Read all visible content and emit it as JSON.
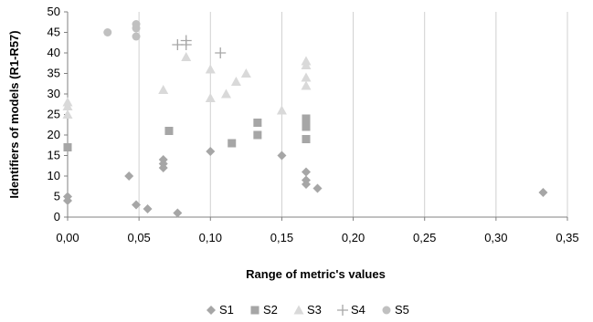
{
  "chart_data": {
    "type": "scatter",
    "xlabel": "Range of metric's values",
    "ylabel": "Identifiers of models (R1-R57)",
    "xlim": [
      0,
      0.35
    ],
    "ylim": [
      0,
      50
    ],
    "x_ticks": [
      0,
      0.05,
      0.1,
      0.15,
      0.2,
      0.25,
      0.3,
      0.35
    ],
    "x_tick_labels": [
      "0,00",
      "0,05",
      "0,10",
      "0,15",
      "0,20",
      "0,25",
      "0,30",
      "0,35"
    ],
    "y_ticks": [
      0,
      5,
      10,
      15,
      20,
      25,
      30,
      35,
      40,
      45,
      50
    ],
    "y_tick_labels": [
      "0",
      "5",
      "10",
      "15",
      "20",
      "25",
      "30",
      "35",
      "40",
      "45",
      "50"
    ],
    "grid": "vertical",
    "legend_position": "bottom",
    "series": [
      {
        "name": "S1",
        "marker": "diamond",
        "color": "#a6a6a6",
        "points": [
          {
            "x": 0.0,
            "y": 4
          },
          {
            "x": 0.0,
            "y": 5
          },
          {
            "x": 0.043,
            "y": 10
          },
          {
            "x": 0.048,
            "y": 3
          },
          {
            "x": 0.056,
            "y": 2
          },
          {
            "x": 0.067,
            "y": 14
          },
          {
            "x": 0.067,
            "y": 13
          },
          {
            "x": 0.067,
            "y": 12
          },
          {
            "x": 0.077,
            "y": 1
          },
          {
            "x": 0.1,
            "y": 16
          },
          {
            "x": 0.15,
            "y": 15
          },
          {
            "x": 0.167,
            "y": 11
          },
          {
            "x": 0.167,
            "y": 9
          },
          {
            "x": 0.167,
            "y": 8
          },
          {
            "x": 0.175,
            "y": 7
          },
          {
            "x": 0.333,
            "y": 6
          }
        ]
      },
      {
        "name": "S2",
        "marker": "square",
        "color": "#a6a6a6",
        "points": [
          {
            "x": 0.0,
            "y": 17
          },
          {
            "x": 0.071,
            "y": 21
          },
          {
            "x": 0.115,
            "y": 18
          },
          {
            "x": 0.133,
            "y": 23
          },
          {
            "x": 0.133,
            "y": 20
          },
          {
            "x": 0.167,
            "y": 24
          },
          {
            "x": 0.167,
            "y": 23
          },
          {
            "x": 0.167,
            "y": 22
          },
          {
            "x": 0.167,
            "y": 19
          }
        ]
      },
      {
        "name": "S3",
        "marker": "triangle",
        "color": "#d9d9d9",
        "points": [
          {
            "x": 0.0,
            "y": 28
          },
          {
            "x": 0.0,
            "y": 27
          },
          {
            "x": 0.0,
            "y": 25
          },
          {
            "x": 0.067,
            "y": 31
          },
          {
            "x": 0.083,
            "y": 39
          },
          {
            "x": 0.1,
            "y": 36
          },
          {
            "x": 0.1,
            "y": 29
          },
          {
            "x": 0.111,
            "y": 30
          },
          {
            "x": 0.118,
            "y": 33
          },
          {
            "x": 0.125,
            "y": 35
          },
          {
            "x": 0.15,
            "y": 26
          },
          {
            "x": 0.167,
            "y": 38
          },
          {
            "x": 0.167,
            "y": 37
          },
          {
            "x": 0.167,
            "y": 34
          },
          {
            "x": 0.167,
            "y": 32
          }
        ]
      },
      {
        "name": "S4",
        "marker": "plus",
        "color": "#a6a6a6",
        "points": [
          {
            "x": 0.077,
            "y": 42
          },
          {
            "x": 0.083,
            "y": 43
          },
          {
            "x": 0.083,
            "y": 42
          },
          {
            "x": 0.107,
            "y": 40
          }
        ]
      },
      {
        "name": "S5",
        "marker": "circle",
        "color": "#c0c0c0",
        "points": [
          {
            "x": 0.028,
            "y": 45
          },
          {
            "x": 0.048,
            "y": 47
          },
          {
            "x": 0.048,
            "y": 46
          },
          {
            "x": 0.048,
            "y": 44
          }
        ]
      }
    ]
  }
}
